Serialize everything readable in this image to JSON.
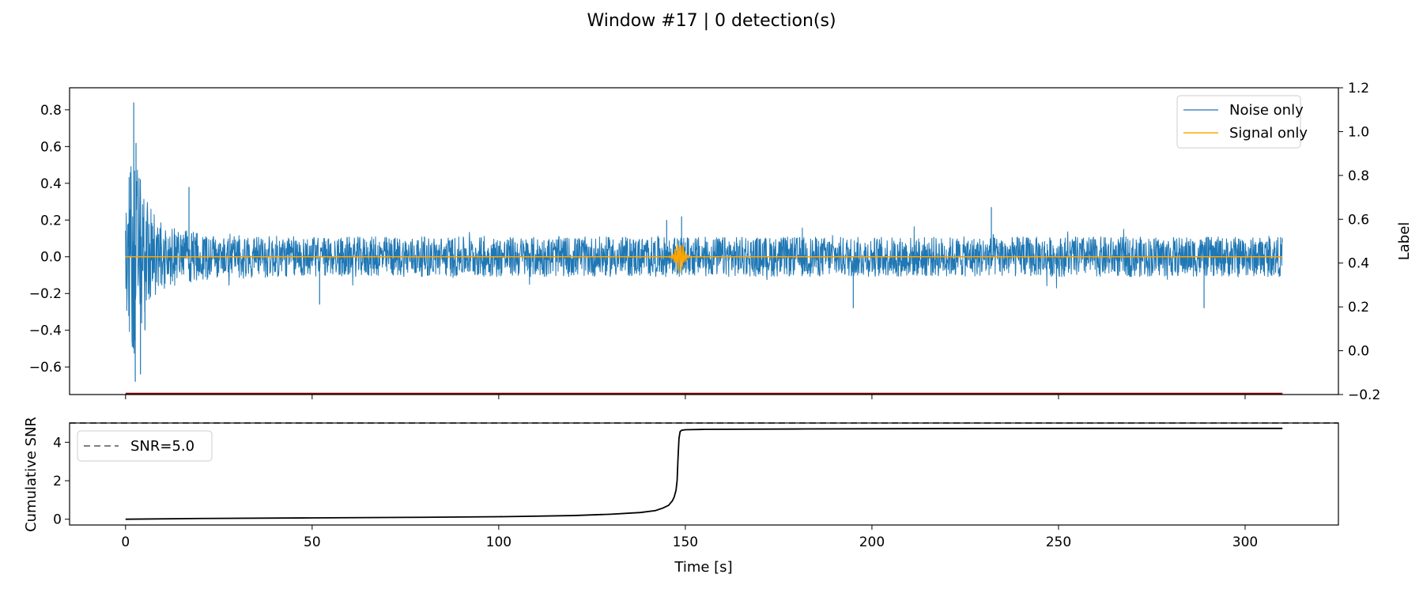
{
  "figure": {
    "title": "Window #17 | 0 detection(s)"
  },
  "chart_data": [
    {
      "id": "waveform",
      "type": "line",
      "title": "",
      "xlabel": "",
      "ylabel": "",
      "y2label": "Label",
      "xlim": [
        -15,
        325
      ],
      "ylim": [
        -0.75,
        0.92
      ],
      "y2lim": [
        -0.2,
        1.2
      ],
      "x_ticks": [
        0,
        50,
        100,
        150,
        200,
        250,
        300
      ],
      "y_ticks": [
        -0.6,
        -0.4,
        -0.2,
        0.0,
        0.2,
        0.4,
        0.6,
        0.8
      ],
      "y_tick_labels": [
        "−0.6",
        "−0.4",
        "−0.2",
        "0.0",
        "0.2",
        "0.4",
        "0.6",
        "0.8"
      ],
      "y2_ticks": [
        -0.2,
        0.0,
        0.2,
        0.4,
        0.6,
        0.8,
        1.0,
        1.2
      ],
      "y2_tick_labels": [
        "−0.2",
        "0.0",
        "0.2",
        "0.4",
        "0.6",
        "0.8",
        "1.0",
        "1.2"
      ],
      "x_range": [
        0,
        310
      ],
      "legend_position": "top-right",
      "grid": false,
      "series": [
        {
          "name": "Noise only",
          "color": "#1f77b4",
          "envelope_x": [
            0,
            1,
            2,
            3,
            4,
            5,
            6,
            8,
            10,
            15,
            20,
            30,
            50,
            80,
            100,
            120,
            140,
            150,
            160,
            180,
            200,
            230,
            260,
            290,
            310
          ],
          "envelope_amp": [
            0.3,
            0.45,
            0.55,
            0.5,
            0.42,
            0.35,
            0.3,
            0.22,
            0.18,
            0.15,
            0.13,
            0.12,
            0.11,
            0.11,
            0.11,
            0.11,
            0.11,
            0.11,
            0.11,
            0.11,
            0.11,
            0.11,
            0.11,
            0.11,
            0.11
          ],
          "peaks": [
            {
              "x": 1.3,
              "y": 0.46
            },
            {
              "x": 2.2,
              "y": 0.84
            },
            {
              "x": 2.8,
              "y": 0.62
            },
            {
              "x": 2.6,
              "y": -0.68
            },
            {
              "x": 1.8,
              "y": -0.49
            },
            {
              "x": 4.0,
              "y": -0.64
            },
            {
              "x": 5.2,
              "y": -0.4
            },
            {
              "x": 17,
              "y": 0.38
            },
            {
              "x": 145,
              "y": 0.2
            },
            {
              "x": 149,
              "y": 0.22
            },
            {
              "x": 232,
              "y": 0.27
            },
            {
              "x": 195,
              "y": -0.28
            },
            {
              "x": 289,
              "y": -0.28
            },
            {
              "x": 52,
              "y": -0.26
            }
          ]
        },
        {
          "name": "Signal only",
          "color": "#ffa500",
          "event_x": 148.5,
          "event_amp": 0.09,
          "event_width": 1.5
        },
        {
          "name": "Label",
          "color": "#8b0000",
          "axis": "right",
          "x": [
            0,
            310
          ],
          "y": [
            -0.2,
            -0.2
          ]
        }
      ]
    },
    {
      "id": "snr",
      "type": "line",
      "title": "",
      "xlabel": "Time [s]",
      "ylabel": "Cumulative SNR",
      "xlim": [
        -15,
        325
      ],
      "ylim": [
        -0.3,
        5.0
      ],
      "x_ticks": [
        0,
        50,
        100,
        150,
        200,
        250,
        300
      ],
      "y_ticks": [
        0,
        2,
        4
      ],
      "legend_position": "top-left",
      "grid": false,
      "threshold": {
        "name": "SNR=5.0",
        "value": 5.0,
        "color": "#808080"
      },
      "series": [
        {
          "name": "Cumulative SNR",
          "color": "#000000",
          "x": [
            0,
            20,
            50,
            80,
            100,
            120,
            130,
            138,
            142,
            144,
            145.5,
            146.5,
            147,
            147.5,
            147.8,
            148,
            148.3,
            148.6,
            149,
            150,
            155,
            180,
            220,
            260,
            310
          ],
          "y": [
            0.0,
            0.04,
            0.07,
            0.1,
            0.13,
            0.19,
            0.26,
            0.35,
            0.45,
            0.58,
            0.72,
            0.95,
            1.15,
            1.5,
            2.0,
            3.0,
            4.2,
            4.55,
            4.62,
            4.65,
            4.67,
            4.69,
            4.71,
            4.72,
            4.72
          ]
        }
      ]
    }
  ]
}
